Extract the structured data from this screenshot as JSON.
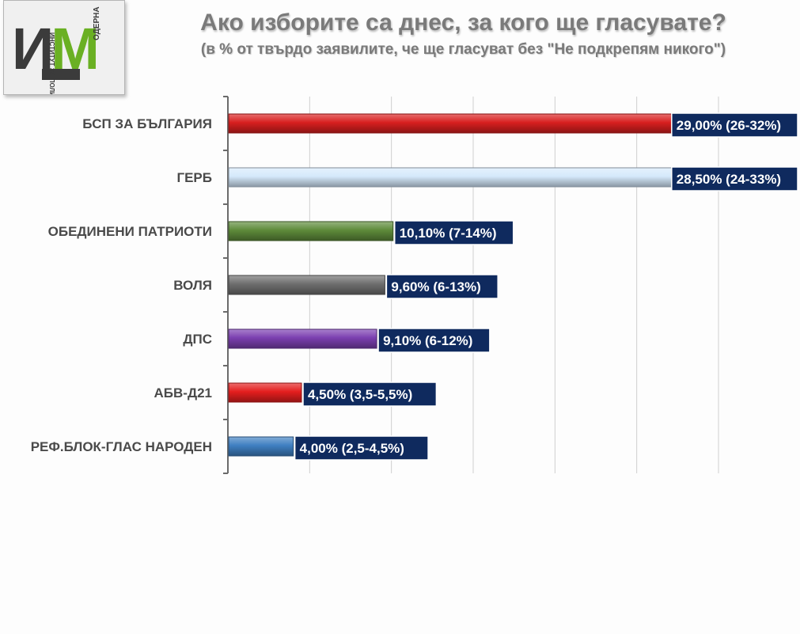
{
  "header": {
    "title": "Ако изборите са днес, за кого ще гласувате?",
    "subtitle": "(в % от твърдо заявилите, че ще гласуват без \"Не подкрепям никого\")"
  },
  "logo": {
    "letters": "ИМ",
    "side_text": "ОДЕРНА",
    "vertical_text": "ИНСТИТУТ ЗА ПОЛИТИКА",
    "colors": {
      "dark": "#3b3b3b",
      "green": "#6ab023"
    }
  },
  "chart_data": {
    "type": "bar",
    "orientation": "horizontal",
    "title": "Ако изборите са днес, за кого ще гласувате?",
    "subtitle": "(в % от твърдо заявилите, че ще гласуват без \"Не подкрепям никого\")",
    "xlim": [
      0,
      30
    ],
    "grid": true,
    "categories": [
      "БСП ЗА БЪЛГАРИЯ",
      "ГЕРБ",
      "ОБЕДИНЕНИ ПАТРИОТИ",
      "ВОЛЯ",
      "ДПС",
      "АБВ-Д21",
      "РЕФ.БЛОК-ГЛАС НАРОДЕН"
    ],
    "values": [
      29.0,
      28.5,
      10.1,
      9.6,
      9.1,
      4.5,
      4.0
    ],
    "value_labels": [
      "29,00%",
      "28,50%",
      "10,10%",
      "9,60%",
      "9,10%",
      "4,50%",
      "4,00%"
    ],
    "ranges": [
      "(26-32%)",
      "(24-33%)",
      "(7-14%)",
      "(6-13%)",
      "(6-12%)",
      "(3,5-5,5%)",
      "(2,5-4,5%)"
    ],
    "colors": [
      "#d81f1f",
      "#d5e9fb",
      "#5e8b3a",
      "#6e6e6e",
      "#7b3fb0",
      "#e41e1e",
      "#3f7fc2"
    ],
    "label_bg": "#0f2a5e"
  }
}
